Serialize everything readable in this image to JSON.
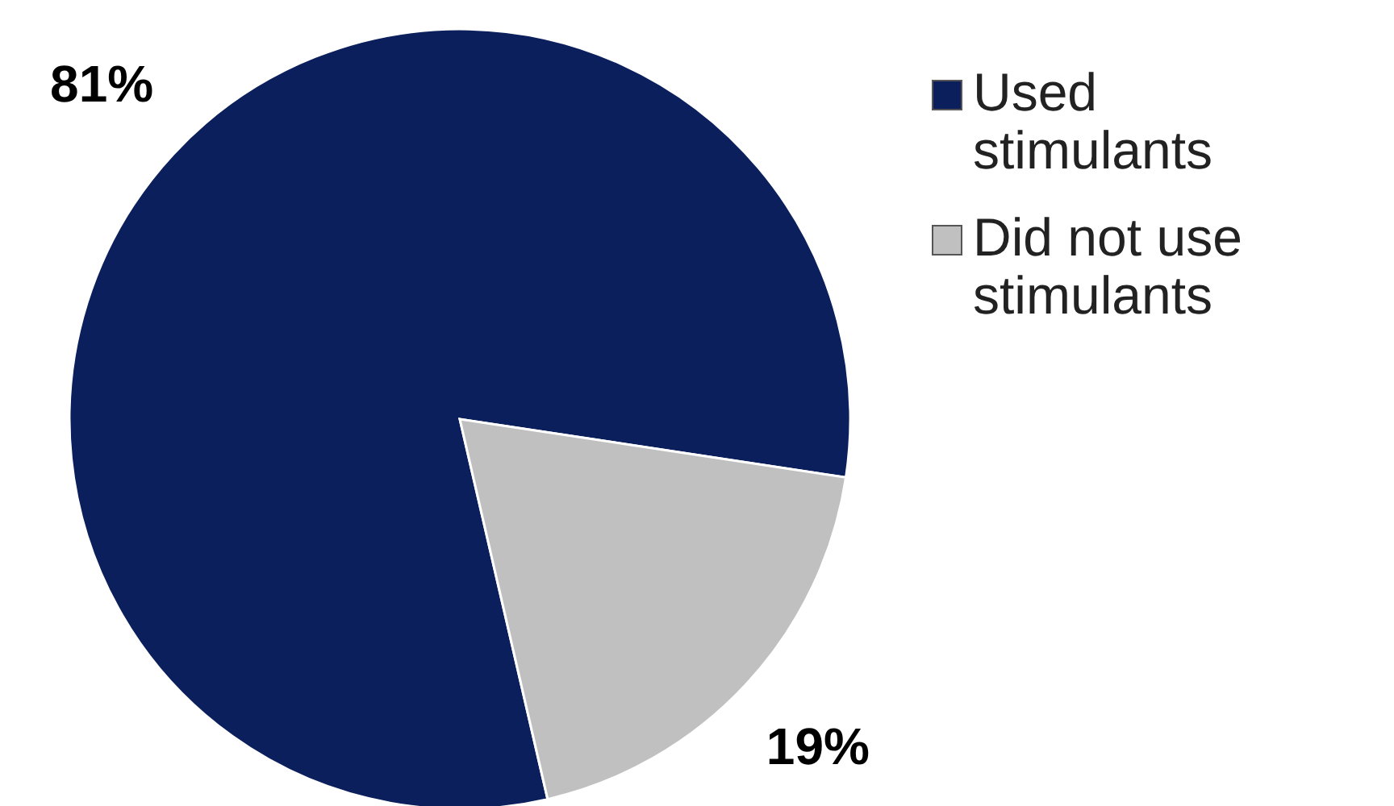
{
  "chart_data": {
    "type": "pie",
    "categories": [
      "Used stimulants",
      "Did not use stimulants"
    ],
    "values": [
      81,
      19
    ],
    "colors": [
      "#0a1f5c",
      "#c0c0c0"
    ],
    "value_labels": [
      "81%",
      "19%"
    ],
    "legend": "right"
  }
}
